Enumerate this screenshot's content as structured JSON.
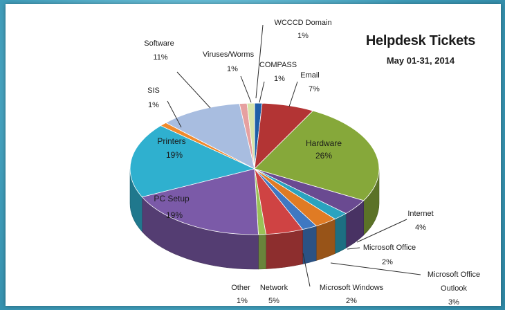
{
  "chart_data": {
    "type": "pie",
    "title": "Helpdesk Tickets",
    "subtitle": "May 01-31, 2014",
    "slices": [
      {
        "label": "COMPASS",
        "value": 1,
        "pct_label": "1%",
        "color": "#1f5fa8"
      },
      {
        "label": "Email",
        "value": 7,
        "pct_label": "7%",
        "color": "#b33434"
      },
      {
        "label": "Hardware",
        "value": 26,
        "pct_label": "26%",
        "color": "#86a83a"
      },
      {
        "label": "Internet",
        "value": 4,
        "pct_label": "4%",
        "color": "#6a4a91"
      },
      {
        "label": "Microsoft Office",
        "value": 2,
        "pct_label": "2%",
        "color": "#2aa3bf"
      },
      {
        "label": "Microsoft Office Outlook",
        "value": 3,
        "pct_label": "3%",
        "color": "#e07b24"
      },
      {
        "label": "Microsoft Windows",
        "value": 2,
        "pct_label": "2%",
        "color": "#3f78c2"
      },
      {
        "label": "Network",
        "value": 5,
        "pct_label": "5%",
        "color": "#cf4343"
      },
      {
        "label": "Other",
        "value": 1,
        "pct_label": "1%",
        "color": "#9ac257"
      },
      {
        "label": "PC Setup",
        "value": 19,
        "pct_label": "19%",
        "color": "#7b5aa8"
      },
      {
        "label": "Printers",
        "value": 19,
        "pct_label": "19%",
        "color": "#2fb0cf"
      },
      {
        "label": "SIS",
        "value": 1,
        "pct_label": "1%",
        "color": "#f08a2c"
      },
      {
        "label": "Software",
        "value": 11,
        "pct_label": "11%",
        "color": "#a8bde0"
      },
      {
        "label": "Viruses/Worms",
        "value": 1,
        "pct_label": "1%",
        "color": "#e6a0a0"
      },
      {
        "label": "WCCCD Domain",
        "value": 1,
        "pct_label": "1%",
        "color": "#d6e4a8"
      }
    ]
  }
}
